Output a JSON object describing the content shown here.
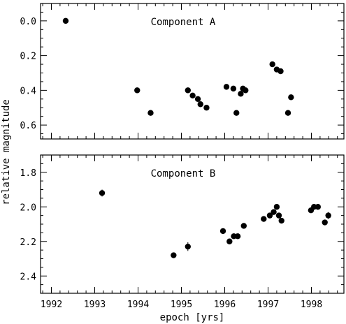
{
  "chart_data": [
    {
      "type": "scatter",
      "title": "Component A",
      "xlim": [
        1991.75,
        1998.75
      ],
      "ylim": [
        -0.1,
        0.68
      ],
      "y_inverted": true,
      "yticks": [
        0.0,
        0.2,
        0.4,
        0.6
      ],
      "ytick_labels": [
        "0.0",
        "0.2",
        "0.4",
        "0.6"
      ],
      "x_tick_labels_shown": false,
      "points": [
        {
          "x": 1992.33,
          "y": 0.0
        },
        {
          "x": 1993.98,
          "y": 0.4
        },
        {
          "x": 1994.29,
          "y": 0.53
        },
        {
          "x": 1995.15,
          "y": 0.4
        },
        {
          "x": 1995.26,
          "y": 0.43
        },
        {
          "x": 1995.38,
          "y": 0.45
        },
        {
          "x": 1995.44,
          "y": 0.48
        },
        {
          "x": 1995.58,
          "y": 0.5
        },
        {
          "x": 1996.04,
          "y": 0.38
        },
        {
          "x": 1996.2,
          "y": 0.39
        },
        {
          "x": 1996.27,
          "y": 0.53
        },
        {
          "x": 1996.37,
          "y": 0.42
        },
        {
          "x": 1996.42,
          "y": 0.39
        },
        {
          "x": 1996.48,
          "y": 0.4
        },
        {
          "x": 1997.1,
          "y": 0.25
        },
        {
          "x": 1997.2,
          "y": 0.28
        },
        {
          "x": 1997.29,
          "y": 0.29
        },
        {
          "x": 1997.46,
          "y": 0.53
        },
        {
          "x": 1997.53,
          "y": 0.44
        }
      ]
    },
    {
      "type": "scatter",
      "title": "Component B",
      "xlim": [
        1991.75,
        1998.75
      ],
      "ylim": [
        1.7,
        2.5
      ],
      "y_inverted": true,
      "yticks": [
        1.8,
        2.0,
        2.2,
        2.4
      ],
      "ytick_labels": [
        "1.8",
        "2.0",
        "2.2",
        "2.4"
      ],
      "xticks": [
        1992,
        1993,
        1994,
        1995,
        1996,
        1997,
        1998
      ],
      "xtick_labels": [
        "1992",
        "1993",
        "1994",
        "1995",
        "1996",
        "1997",
        "1998"
      ],
      "points": [
        {
          "x": 1993.17,
          "y": 1.92,
          "err": 0.02
        },
        {
          "x": 1994.82,
          "y": 2.28,
          "err": 0.01
        },
        {
          "x": 1995.15,
          "y": 2.23,
          "err": 0.025
        },
        {
          "x": 1995.96,
          "y": 2.14,
          "err": 0.01
        },
        {
          "x": 1996.11,
          "y": 2.2,
          "err": 0.01
        },
        {
          "x": 1996.21,
          "y": 2.17,
          "err": 0.01
        },
        {
          "x": 1996.3,
          "y": 2.17,
          "err": 0.015
        },
        {
          "x": 1996.44,
          "y": 2.11,
          "err": 0.01
        },
        {
          "x": 1996.9,
          "y": 2.07,
          "err": 0.01
        },
        {
          "x": 1997.04,
          "y": 2.05,
          "err": 0.01
        },
        {
          "x": 1997.13,
          "y": 2.03,
          "err": 0.01
        },
        {
          "x": 1997.2,
          "y": 2.0,
          "err": 0.01
        },
        {
          "x": 1997.25,
          "y": 2.05,
          "err": 0.01
        },
        {
          "x": 1997.31,
          "y": 2.08,
          "err": 0.01
        },
        {
          "x": 1997.99,
          "y": 2.02,
          "err": 0.01
        },
        {
          "x": 1998.06,
          "y": 2.0,
          "err": 0.01
        },
        {
          "x": 1998.15,
          "y": 2.0,
          "err": 0.01
        },
        {
          "x": 1998.31,
          "y": 2.09,
          "err": 0.015
        },
        {
          "x": 1998.39,
          "y": 2.05,
          "err": 0.02
        }
      ]
    }
  ],
  "xlabel": "epoch [yrs]",
  "ylabel": "relative magnitude"
}
